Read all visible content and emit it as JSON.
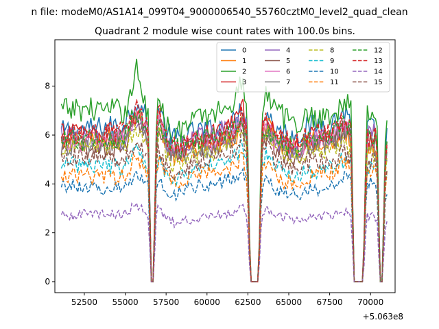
{
  "chart_data": {
    "type": "line",
    "suptitle": "n file: modeM0/AS1A14_099T04_9000006540_55760cztM0_level2_quad_clean",
    "title": "Quadrant 2 module wise count rates with 100.0s bins.",
    "xlabel": "",
    "ylabel": "",
    "x_offset_label": "+5.063e8",
    "xlim": [
      50700,
      71500
    ],
    "ylim": [
      -0.45,
      9.9
    ],
    "xticks": [
      52500,
      55000,
      57500,
      60000,
      62500,
      65000,
      67500,
      70000
    ],
    "yticks": [
      0,
      2,
      4,
      6,
      8
    ],
    "x_range": [
      51100,
      71000
    ],
    "bin_seconds": 100,
    "gaps": [
      {
        "start": 56600,
        "end": 56720
      },
      {
        "start": 62650,
        "end": 63150
      },
      {
        "start": 69000,
        "end": 69550
      },
      {
        "start": 70580,
        "end": 70720
      }
    ],
    "legend": {
      "placement": "top-right",
      "columns": 4
    },
    "series": [
      {
        "name": "0",
        "color": "#1f77b4",
        "dash": "solid",
        "level": 6.3
      },
      {
        "name": "1",
        "color": "#ff7f0e",
        "dash": "solid",
        "level": 5.7
      },
      {
        "name": "2",
        "color": "#2ca02c",
        "dash": "solid",
        "level": 6.9
      },
      {
        "name": "3",
        "color": "#d62728",
        "dash": "solid",
        "level": 6.0
      },
      {
        "name": "4",
        "color": "#9467bd",
        "dash": "solid",
        "level": 5.9
      },
      {
        "name": "5",
        "color": "#8c564b",
        "dash": "solid",
        "level": 5.6
      },
      {
        "name": "6",
        "color": "#e377c2",
        "dash": "solid",
        "level": 5.8
      },
      {
        "name": "7",
        "color": "#7f7f7f",
        "dash": "solid",
        "level": 5.6
      },
      {
        "name": "8",
        "color": "#bcbd22",
        "dash": "dashed",
        "level": 5.4
      },
      {
        "name": "9",
        "color": "#17becf",
        "dash": "dashed",
        "level": 4.7
      },
      {
        "name": "10",
        "color": "#1f77b4",
        "dash": "dashed",
        "level": 3.9
      },
      {
        "name": "11",
        "color": "#ff7f0e",
        "dash": "dashed",
        "level": 4.4
      },
      {
        "name": "12",
        "color": "#2ca02c",
        "dash": "dashed",
        "level": 5.9
      },
      {
        "name": "13",
        "color": "#d62728",
        "dash": "dashed",
        "level": 6.0
      },
      {
        "name": "14",
        "color": "#9467bd",
        "dash": "dashed",
        "level": 2.7
      },
      {
        "name": "15",
        "color": "#8c564b",
        "dash": "dashed",
        "level": 5.0
      }
    ]
  }
}
